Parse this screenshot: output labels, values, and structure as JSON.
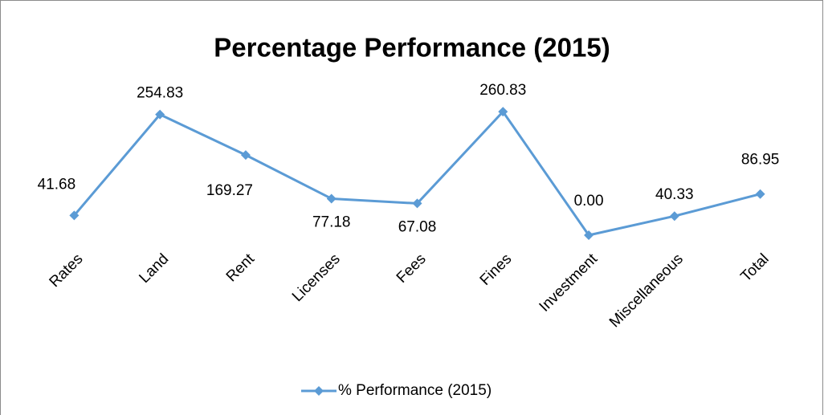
{
  "chart_data": {
    "type": "line",
    "title": "Percentage Performance (2015)",
    "categories": [
      "Rates",
      "Land",
      "Rent",
      "Licenses",
      "Fees",
      "Fines",
      "Investment",
      "Miscellaneous",
      "Total"
    ],
    "series": [
      {
        "name": "% Performance (2015)",
        "color": "#5b9bd5",
        "values": [
          41.68,
          254.83,
          169.27,
          77.18,
          67.08,
          260.83,
          0,
          40.33,
          86.95
        ],
        "value_labels": [
          "41.68",
          "254.83",
          "169.27",
          "77.18",
          "67.08",
          "260.83",
          "0.00",
          "40.33",
          "86.95"
        ]
      }
    ],
    "ylim": [
      0,
      300
    ],
    "legend": "bottom"
  }
}
